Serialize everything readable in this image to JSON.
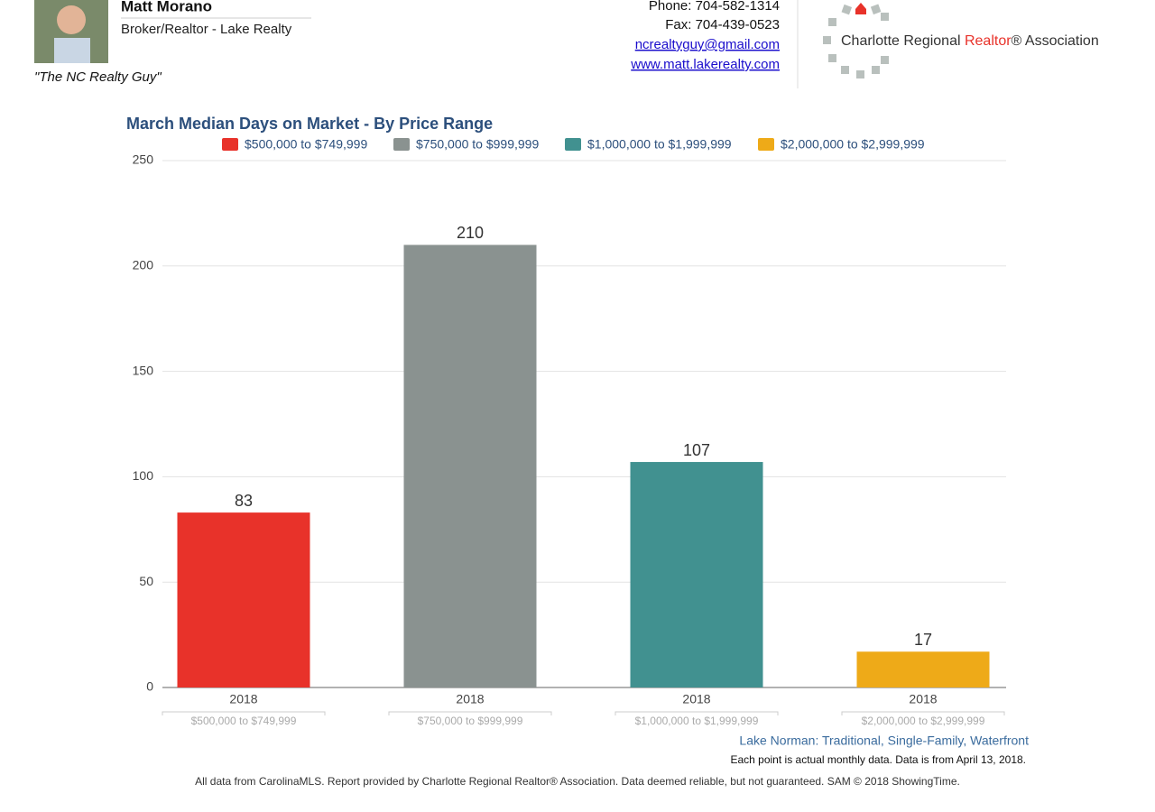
{
  "header": {
    "name": "Matt Morano",
    "role": "Broker/Realtor - Lake Realty",
    "tagline": "\"The NC Realty Guy\"",
    "phone": "Phone: 704-582-1314",
    "fax": "Fax: 704-439-0523",
    "email": "ncrealtyguy@gmail.com",
    "website": "www.matt.lakerealty.com",
    "logo": {
      "part1": "Charlotte Regional ",
      "part2": "Realtor",
      "part3": "® Association"
    }
  },
  "chart_data": {
    "type": "bar",
    "title": "March Median Days on Market - By Price Range",
    "categories": [
      "$500,000 to $749,999",
      "$750,000 to $999,999",
      "$1,000,000 to $1,999,999",
      "$2,000,000 to $2,999,999"
    ],
    "values": [
      83,
      210,
      107,
      17
    ],
    "colors": [
      "#e8322a",
      "#8a9290",
      "#419190",
      "#eeaa18"
    ],
    "period": "2018",
    "ylim": [
      0,
      250
    ],
    "yticks": [
      0,
      50,
      100,
      150,
      200,
      250
    ],
    "grid": true,
    "legend": "top"
  },
  "footer": {
    "subtitle": "Lake Norman: Traditional, Single-Family, Waterfront",
    "note": "Each point is actual monthly data. Data is from April 13, 2018.",
    "disclaimer": "All data from CarolinaMLS. Report provided by Charlotte Regional Realtor® Association. Data deemed reliable, but not guaranteed. SAM © 2018 ShowingTime."
  }
}
